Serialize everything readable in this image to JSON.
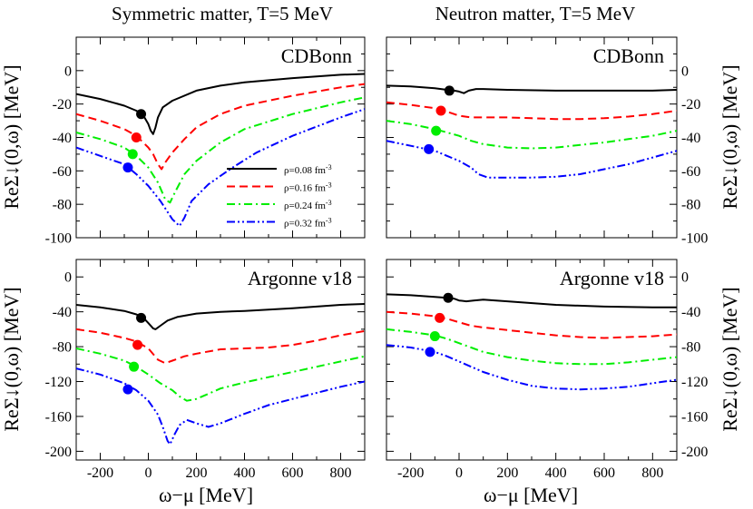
{
  "figure": {
    "column_titles": [
      "Symmetric matter, T=5 MeV",
      "Neutron matter, T=5 MeV"
    ],
    "xlabel": "ω−μ [MeV]",
    "ylabel": "ReΣ↓(0,ω) [MeV]"
  },
  "legend": {
    "entries": [
      {
        "text": "ρ=0.08 fm",
        "sup": "-3",
        "color": "#000000",
        "dash": "solid"
      },
      {
        "text": "ρ=0.16 fm",
        "sup": "-3",
        "color": "#ff0000",
        "dash": "dashed"
      },
      {
        "text": "ρ=0.24 fm",
        "sup": "-3",
        "color": "#00ee00",
        "dash": "dashdot"
      },
      {
        "text": "ρ=0.32 fm",
        "sup": "-3",
        "color": "#0000ff",
        "dash": "dashdotdot"
      }
    ]
  },
  "chart_data": [
    {
      "type": "line",
      "panel_title": "CDBonn",
      "xlim": [
        -300,
        900
      ],
      "ylim": [
        -100,
        20
      ],
      "xticks": [
        -200,
        0,
        200,
        400,
        600,
        800
      ],
      "yticks": [
        -100,
        -80,
        -60,
        -40,
        -20,
        0
      ],
      "series": [
        {
          "name": "ρ=0.08 fm-3",
          "color": "#000000",
          "dash": "solid",
          "x": [
            -300,
            -200,
            -100,
            -50,
            -20,
            0,
            10,
            20,
            30,
            40,
            60,
            100,
            200,
            300,
            400,
            600,
            800,
            900
          ],
          "y": [
            -14,
            -17,
            -21,
            -24,
            -27,
            -32,
            -36,
            -38,
            -34,
            -28,
            -22,
            -18,
            -12,
            -9,
            -7,
            -4.5,
            -2.5,
            -2
          ],
          "marker": [
            -30,
            -26
          ]
        },
        {
          "name": "ρ=0.16 fm-3",
          "color": "#ff0000",
          "dash": "dashed",
          "x": [
            -300,
            -200,
            -100,
            -50,
            0,
            20,
            40,
            55,
            70,
            100,
            150,
            200,
            300,
            400,
            600,
            800,
            900
          ],
          "y": [
            -26,
            -30,
            -35,
            -39,
            -46,
            -50,
            -56,
            -59,
            -55,
            -49,
            -41,
            -34,
            -26,
            -21,
            -15,
            -10,
            -8
          ],
          "marker": [
            -50,
            -40
          ]
        },
        {
          "name": "ρ=0.24 fm-3",
          "color": "#00ee00",
          "dash": "dashdot",
          "x": [
            -300,
            -200,
            -100,
            -50,
            0,
            40,
            70,
            90,
            110,
            150,
            200,
            300,
            400,
            600,
            800,
            900
          ],
          "y": [
            -37,
            -41,
            -46,
            -51,
            -58,
            -67,
            -77,
            -79,
            -73,
            -62,
            -54,
            -43,
            -35,
            -26,
            -19,
            -16
          ],
          "marker": [
            -65,
            -50
          ]
        },
        {
          "name": "ρ=0.32 fm-3",
          "color": "#0000ff",
          "dash": "dashdotdot",
          "x": [
            -300,
            -200,
            -100,
            -50,
            0,
            50,
            100,
            130,
            150,
            180,
            250,
            350,
            450,
            600,
            800,
            900
          ],
          "y": [
            -46,
            -51,
            -56,
            -62,
            -69,
            -78,
            -89,
            -93,
            -88,
            -78,
            -68,
            -58,
            -49,
            -39,
            -28,
            -23
          ],
          "marker": [
            -85,
            -58
          ]
        }
      ]
    },
    {
      "type": "line",
      "panel_title": "CDBonn",
      "xlim": [
        -300,
        900
      ],
      "ylim": [
        -100,
        20
      ],
      "xticks": [
        -200,
        0,
        200,
        400,
        600,
        800
      ],
      "yticks": [
        -100,
        -80,
        -60,
        -40,
        -20,
        0
      ],
      "series": [
        {
          "name": "ρ=0.08 fm-3",
          "color": "#000000",
          "dash": "solid",
          "x": [
            -300,
            -200,
            -100,
            -50,
            -20,
            0,
            20,
            40,
            70,
            100,
            200,
            400,
            600,
            800,
            900
          ],
          "y": [
            -9,
            -9.5,
            -10.5,
            -11.5,
            -12,
            -12.5,
            -13.5,
            -12,
            -11,
            -11,
            -11.5,
            -12,
            -12,
            -12,
            -11.5
          ],
          "marker": [
            -40,
            -12
          ]
        },
        {
          "name": "ρ=0.16 fm-3",
          "color": "#ff0000",
          "dash": "dashed",
          "x": [
            -300,
            -200,
            -100,
            -50,
            0,
            50,
            100,
            200,
            300,
            400,
            500,
            600,
            700,
            800,
            900
          ],
          "y": [
            -19,
            -20.5,
            -22.5,
            -24.5,
            -27,
            -28,
            -28,
            -28,
            -28.5,
            -29,
            -29,
            -28.5,
            -27.5,
            -26,
            -24
          ],
          "marker": [
            -75,
            -24
          ]
        },
        {
          "name": "ρ=0.24 fm-3",
          "color": "#00ee00",
          "dash": "dashdot",
          "x": [
            -300,
            -200,
            -100,
            -50,
            0,
            50,
            100,
            150,
            200,
            300,
            400,
            500,
            600,
            700,
            800,
            900
          ],
          "y": [
            -30,
            -32,
            -35,
            -37,
            -39,
            -42,
            -44,
            -45,
            -46,
            -46.5,
            -46,
            -44.5,
            -43,
            -41,
            -39,
            -36
          ],
          "marker": [
            -95,
            -36
          ]
        },
        {
          "name": "ρ=0.32 fm-3",
          "color": "#0000ff",
          "dash": "dashdotdot",
          "x": [
            -300,
            -200,
            -100,
            -50,
            0,
            50,
            80,
            120,
            200,
            300,
            400,
            500,
            600,
            700,
            800,
            900
          ],
          "y": [
            -42,
            -45,
            -48,
            -51,
            -54,
            -58,
            -62,
            -64,
            -64,
            -64,
            -63.5,
            -62,
            -59,
            -56,
            -52,
            -48
          ],
          "marker": [
            -125,
            -47
          ]
        }
      ]
    },
    {
      "type": "line",
      "panel_title": "Argonne v18",
      "xlim": [
        -300,
        900
      ],
      "ylim": [
        -210,
        20
      ],
      "xticks": [
        -200,
        0,
        200,
        400,
        600,
        800
      ],
      "yticks": [
        -200,
        -160,
        -120,
        -80,
        -40,
        0
      ],
      "series": [
        {
          "name": "ρ=0.08 fm-3",
          "color": "#000000",
          "dash": "solid",
          "x": [
            -300,
            -200,
            -100,
            -50,
            -20,
            0,
            20,
            30,
            50,
            80,
            120,
            200,
            300,
            400,
            600,
            800,
            900
          ],
          "y": [
            -32,
            -35,
            -39,
            -43,
            -47,
            -53,
            -59,
            -60,
            -56,
            -50,
            -46,
            -42,
            -40,
            -39,
            -36,
            -32,
            -31
          ],
          "marker": [
            -30,
            -47
          ]
        },
        {
          "name": "ρ=0.16 fm-3",
          "color": "#ff0000",
          "dash": "dashed",
          "x": [
            -300,
            -200,
            -100,
            -50,
            0,
            40,
            70,
            100,
            150,
            200,
            300,
            400,
            500,
            600,
            700,
            800,
            900
          ],
          "y": [
            -60,
            -64,
            -70,
            -74,
            -82,
            -95,
            -99,
            -96,
            -91,
            -88,
            -83,
            -82,
            -81,
            -78,
            -73,
            -67,
            -62
          ],
          "marker": [
            -45,
            -78
          ]
        },
        {
          "name": "ρ=0.24 fm-3",
          "color": "#00ee00",
          "dash": "dashdot",
          "x": [
            -300,
            -200,
            -100,
            -50,
            0,
            50,
            100,
            130,
            160,
            200,
            250,
            300,
            400,
            500,
            600,
            700,
            800,
            900
          ],
          "y": [
            -82,
            -88,
            -96,
            -103,
            -112,
            -122,
            -130,
            -137,
            -142,
            -140,
            -134,
            -128,
            -121,
            -115,
            -109,
            -103,
            -97,
            -91
          ],
          "marker": [
            -60,
            -103
          ]
        },
        {
          "name": "ρ=0.32 fm-3",
          "color": "#0000ff",
          "dash": "dashdotdot",
          "x": [
            -300,
            -200,
            -100,
            -50,
            0,
            40,
            60,
            80,
            90,
            110,
            130,
            160,
            200,
            250,
            300,
            400,
            500,
            600,
            700,
            800,
            900
          ],
          "y": [
            -105,
            -112,
            -122,
            -130,
            -142,
            -158,
            -172,
            -188,
            -192,
            -180,
            -170,
            -164,
            -168,
            -172,
            -168,
            -157,
            -147,
            -140,
            -133,
            -126,
            -120
          ],
          "marker": [
            -85,
            -129
          ]
        }
      ]
    },
    {
      "type": "line",
      "panel_title": "Argonne v18",
      "xlim": [
        -300,
        900
      ],
      "ylim": [
        -210,
        20
      ],
      "xticks": [
        -200,
        0,
        200,
        400,
        600,
        800
      ],
      "yticks": [
        -200,
        -160,
        -120,
        -80,
        -40,
        0
      ],
      "series": [
        {
          "name": "ρ=0.08 fm-3",
          "color": "#000000",
          "dash": "solid",
          "x": [
            -300,
            -200,
            -100,
            -50,
            -20,
            0,
            30,
            60,
            100,
            200,
            400,
            600,
            800,
            900
          ],
          "y": [
            -20,
            -21,
            -23,
            -24,
            -25,
            -27,
            -28,
            -27,
            -26,
            -28,
            -32,
            -34,
            -35,
            -35
          ],
          "marker": [
            -45,
            -24
          ]
        },
        {
          "name": "ρ=0.16 fm-3",
          "color": "#ff0000",
          "dash": "dashed",
          "x": [
            -300,
            -200,
            -100,
            -50,
            0,
            50,
            100,
            200,
            300,
            400,
            500,
            600,
            700,
            800,
            900
          ],
          "y": [
            -40,
            -42,
            -45,
            -48,
            -52,
            -56,
            -58,
            -61,
            -64,
            -67,
            -69,
            -70,
            -69,
            -68,
            -66
          ],
          "marker": [
            -80,
            -47
          ]
        },
        {
          "name": "ρ=0.24 fm-3",
          "color": "#00ee00",
          "dash": "dashdot",
          "x": [
            -300,
            -200,
            -100,
            -50,
            0,
            50,
            100,
            200,
            300,
            400,
            500,
            600,
            700,
            800,
            900
          ],
          "y": [
            -60,
            -63,
            -67,
            -71,
            -76,
            -81,
            -86,
            -92,
            -96,
            -99,
            -100,
            -100,
            -98,
            -95,
            -92
          ],
          "marker": [
            -100,
            -68
          ]
        },
        {
          "name": "ρ=0.32 fm-3",
          "color": "#0000ff",
          "dash": "dashdotdot",
          "x": [
            -300,
            -200,
            -100,
            -50,
            0,
            50,
            100,
            200,
            300,
            400,
            500,
            600,
            700,
            800,
            900
          ],
          "y": [
            -78,
            -81,
            -86,
            -91,
            -97,
            -103,
            -109,
            -118,
            -125,
            -128,
            -129,
            -128,
            -126,
            -122,
            -118
          ],
          "marker": [
            -120,
            -86
          ]
        }
      ]
    }
  ]
}
